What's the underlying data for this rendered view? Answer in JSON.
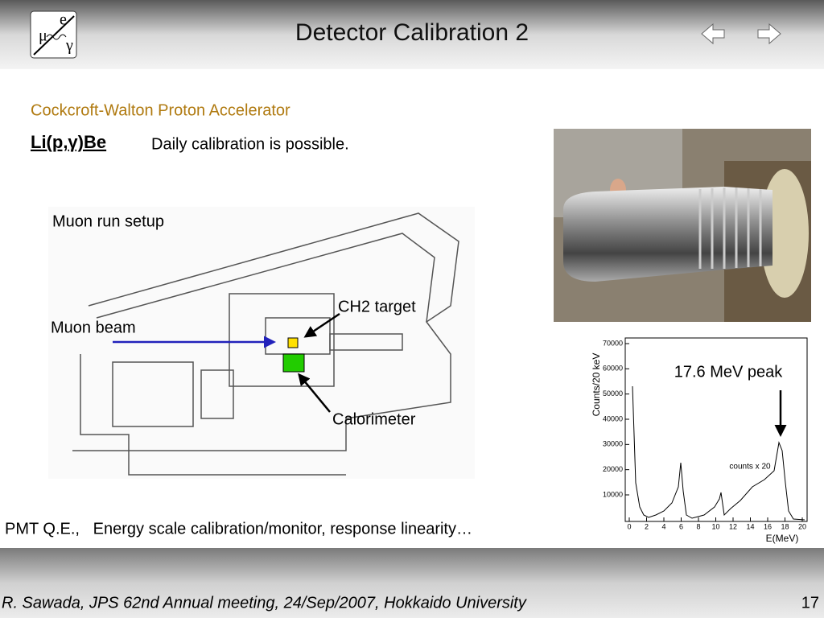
{
  "header": {
    "title": "Detector Calibration 2",
    "logo": [
      "μ",
      "e",
      "γ"
    ]
  },
  "body": {
    "heading": "Cockcroft-Walton Proton Accelerator",
    "reaction": "Li(p,γ)Be",
    "note": "Daily calibration is possible.",
    "summary": "PMT Q.E.,   Energy scale calibration/monitor, response linearity…"
  },
  "diagram": {
    "title": "Muon run setup",
    "beam": "Muon beam",
    "target": "CH2 target",
    "calorimeter": "Calorimeter"
  },
  "plot": {
    "y_label": "Counts/20 keV",
    "x_label": "E(MeV)",
    "inset": "counts x 20",
    "annotation": "17.6 MeV peak",
    "yticks": [
      70000,
      60000,
      50000,
      40000,
      30000,
      20000,
      10000
    ],
    "xticks": [
      0,
      2,
      4,
      6,
      8,
      10,
      12,
      14,
      16,
      18,
      20
    ]
  },
  "footer": {
    "citation": "R. Sawada, JPS 62nd Annual meeting, 24/Sep/2007, Hokkaido University",
    "page": "17"
  }
}
